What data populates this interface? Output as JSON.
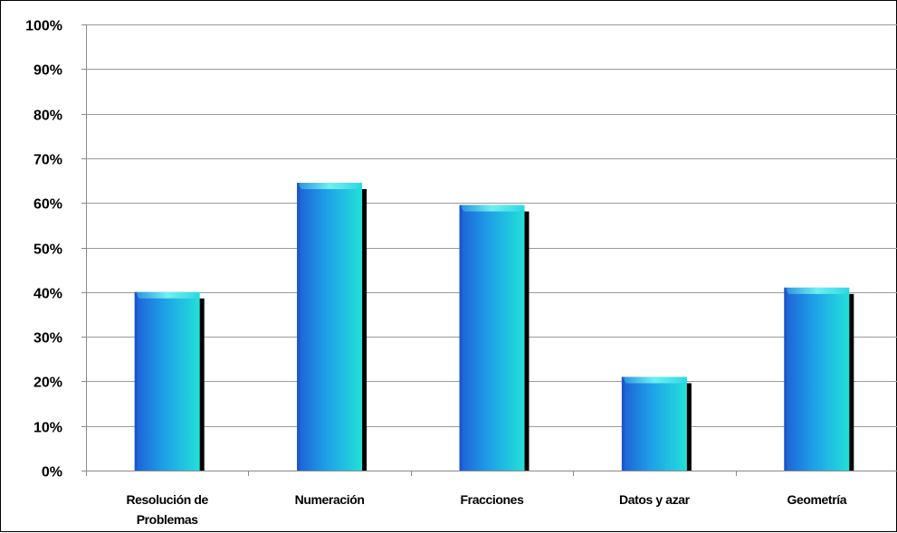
{
  "chart_data": {
    "type": "bar",
    "title": "",
    "xlabel": "",
    "ylabel": "",
    "categories": [
      "Resolución de Problemas",
      "Numeración",
      "Fracciones",
      "Datos y azar",
      "Geometría"
    ],
    "category_lines": [
      [
        "Resolución de",
        "Problemas"
      ],
      [
        "Numeración"
      ],
      [
        "Fracciones"
      ],
      [
        "Datos y azar"
      ],
      [
        "Geometría"
      ]
    ],
    "values": [
      0.4,
      0.645,
      0.595,
      0.21,
      0.41
    ],
    "ylim": [
      0,
      1
    ],
    "yticks": [
      0,
      0.1,
      0.2,
      0.3,
      0.4,
      0.5,
      0.6,
      0.7,
      0.8,
      0.9,
      1.0
    ],
    "ytick_labels": [
      "0%",
      "10%",
      "20%",
      "30%",
      "40%",
      "50%",
      "60%",
      "70%",
      "80%",
      "90%",
      "100%"
    ],
    "grid": true,
    "legend": "none",
    "colors": {
      "bar_dark": "#1e5fd6",
      "bar_mid": "#1ea0e8",
      "bar_light": "#22e0d8",
      "bar_top": "#4dd8f0",
      "shadow": "#000000",
      "grid": "#9a9a9a",
      "axis": "#8a8a8a"
    }
  }
}
